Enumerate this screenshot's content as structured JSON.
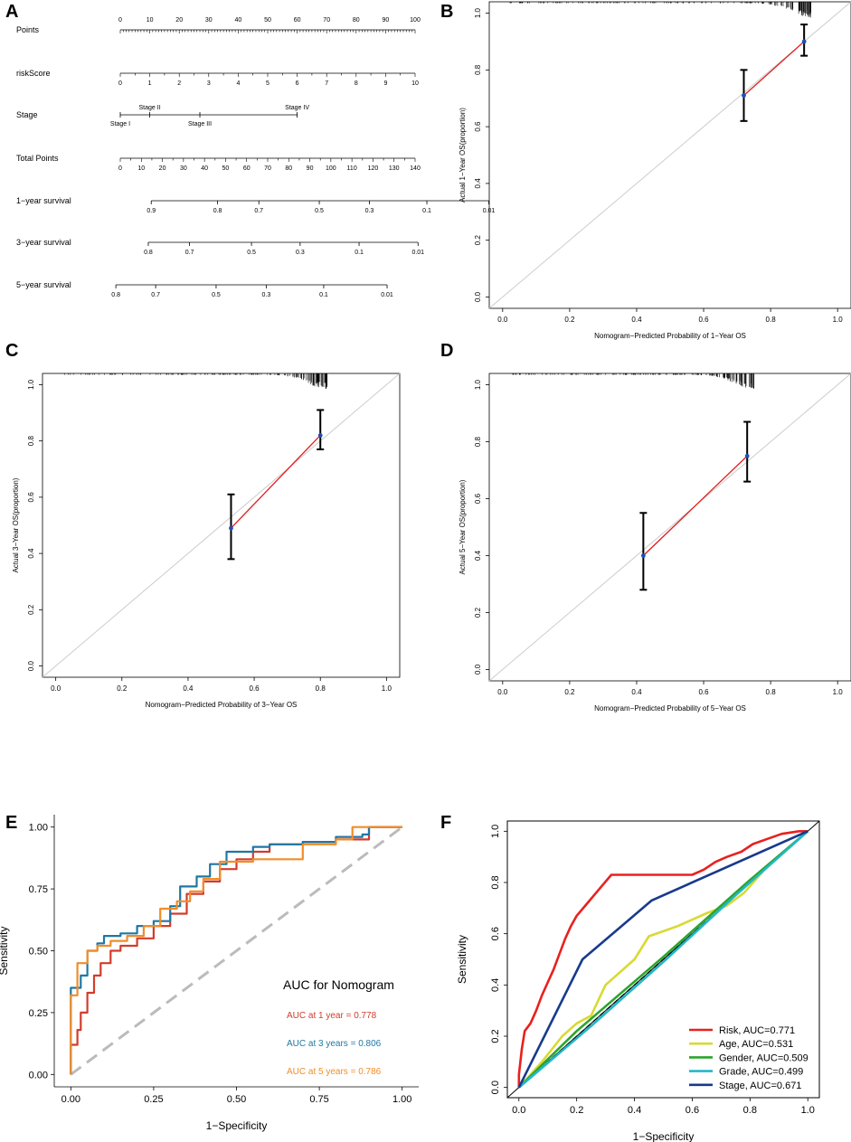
{
  "panel_letters": {
    "a": "A",
    "b": "B",
    "c": "C",
    "d": "D",
    "e": "E",
    "f": "F"
  },
  "chart_data": [
    {
      "id": "A",
      "type": "nomogram",
      "rows": [
        {
          "label": "Points",
          "ticks": [
            "0",
            "10",
            "20",
            "30",
            "40",
            "50",
            "60",
            "70",
            "80",
            "90",
            "100"
          ],
          "values": [
            0,
            10,
            20,
            30,
            40,
            50,
            60,
            70,
            80,
            90,
            100
          ]
        },
        {
          "label": "riskScore",
          "ticks": [
            "0",
            "1",
            "2",
            "3",
            "4",
            "5",
            "6",
            "7",
            "8",
            "9",
            "10"
          ],
          "values": [
            0,
            10,
            20,
            30,
            40,
            50,
            60,
            70,
            80,
            90,
            100
          ]
        },
        {
          "label": "Stage",
          "ticks": [
            "Stage I",
            "Stage II",
            "Stage III",
            "Stage IV"
          ],
          "values": [
            0,
            10,
            27,
            60
          ]
        },
        {
          "label": "Total Points",
          "ticks": [
            "0",
            "10",
            "20",
            "30",
            "40",
            "50",
            "60",
            "70",
            "80",
            "90",
            "100",
            "110",
            "120",
            "130",
            "140"
          ],
          "values": [
            0,
            10,
            20,
            30,
            40,
            50,
            60,
            70,
            80,
            90,
            100,
            110,
            120,
            130,
            140
          ]
        },
        {
          "label": "1−year survival",
          "ticks": [
            "0.9",
            "0.8",
            "0.7",
            "0.5",
            "0.3",
            "0.1",
            "0.01"
          ],
          "values": [
            10.5,
            33,
            47,
            67.5,
            84.5,
            104,
            125
          ]
        },
        {
          "label": "3−year survival",
          "ticks": [
            "0.8",
            "0.7",
            "0.5",
            "0.3",
            "0.1",
            "0.01"
          ],
          "values": [
            9.5,
            23.5,
            44.5,
            61,
            81,
            101
          ]
        },
        {
          "label": "5−year survival",
          "ticks": [
            "0.8",
            "0.7",
            "0.5",
            "0.3",
            "0.1",
            "0.01"
          ],
          "values": [
            -1.5,
            12,
            32.5,
            49.5,
            69,
            90.5
          ]
        }
      ]
    },
    {
      "id": "B",
      "type": "scatter",
      "title": "",
      "xlabel": "Nomogram−Predicted Probability of 1−Year OS",
      "ylabel": "Actual 1−Year OS(proportion)",
      "xlim": [
        -0.04,
        1.04
      ],
      "ylim": [
        -0.04,
        1.04
      ],
      "xticks": [
        "0.0",
        "0.2",
        "0.4",
        "0.6",
        "0.8",
        "1.0"
      ],
      "yticks": [
        "0.0",
        "0.2",
        "0.4",
        "0.6",
        "0.8",
        "1.0"
      ],
      "points": [
        {
          "x": 0.72,
          "y": 0.71,
          "lo": 0.62,
          "hi": 0.8
        },
        {
          "x": 0.9,
          "y": 0.9,
          "lo": 0.85,
          "hi": 0.96
        }
      ]
    },
    {
      "id": "C",
      "type": "scatter",
      "title": "",
      "xlabel": "Nomogram−Predicted Probability of 3−Year OS",
      "ylabel": "Actual 3−Year OS(proportion)",
      "xlim": [
        -0.04,
        1.04
      ],
      "ylim": [
        -0.04,
        1.04
      ],
      "xticks": [
        "0.0",
        "0.2",
        "0.4",
        "0.6",
        "0.8",
        "1.0"
      ],
      "yticks": [
        "0.0",
        "0.2",
        "0.4",
        "0.6",
        "0.8",
        "1.0"
      ],
      "points": [
        {
          "x": 0.53,
          "y": 0.49,
          "lo": 0.38,
          "hi": 0.61
        },
        {
          "x": 0.8,
          "y": 0.82,
          "lo": 0.77,
          "hi": 0.91
        }
      ]
    },
    {
      "id": "D",
      "type": "scatter",
      "title": "",
      "xlabel": "Nomogram−Predicted Probability of 5−Year OS",
      "ylabel": "Actual 5−Year OS(proportion)",
      "xlim": [
        -0.04,
        1.04
      ],
      "ylim": [
        -0.04,
        1.04
      ],
      "xticks": [
        "0.0",
        "0.2",
        "0.4",
        "0.6",
        "0.8",
        "1.0"
      ],
      "yticks": [
        "0.0",
        "0.2",
        "0.4",
        "0.6",
        "0.8",
        "1.0"
      ],
      "points": [
        {
          "x": 0.42,
          "y": 0.4,
          "lo": 0.28,
          "hi": 0.55
        },
        {
          "x": 0.73,
          "y": 0.75,
          "lo": 0.66,
          "hi": 0.87
        }
      ]
    },
    {
      "id": "E",
      "type": "line",
      "title": "",
      "xlabel": "1−Specificity",
      "ylabel": "Sensitivity",
      "xlim": [
        -0.05,
        1.05
      ],
      "ylim": [
        -0.05,
        1.05
      ],
      "xticks": [
        "0.00",
        "0.25",
        "0.50",
        "0.75",
        "1.00"
      ],
      "yticks": [
        "0.00",
        "0.25",
        "0.50",
        "0.75",
        "1.00"
      ],
      "legend_title": "AUC for Nomogram",
      "legend_placement": "bottom-right",
      "series": [
        {
          "name": "AUC at 1 year = 0.778",
          "color": "#d23c2b",
          "points": [
            [
              0,
              0
            ],
            [
              0,
              0.12
            ],
            [
              0.02,
              0.18
            ],
            [
              0.03,
              0.25
            ],
            [
              0.05,
              0.33
            ],
            [
              0.07,
              0.4
            ],
            [
              0.09,
              0.45
            ],
            [
              0.12,
              0.5
            ],
            [
              0.15,
              0.52
            ],
            [
              0.2,
              0.55
            ],
            [
              0.25,
              0.6
            ],
            [
              0.3,
              0.65
            ],
            [
              0.35,
              0.73
            ],
            [
              0.4,
              0.78
            ],
            [
              0.45,
              0.83
            ],
            [
              0.5,
              0.87
            ],
            [
              0.55,
              0.9
            ],
            [
              0.6,
              0.93
            ],
            [
              0.7,
              0.94
            ],
            [
              0.8,
              0.95
            ],
            [
              0.9,
              0.98
            ],
            [
              0.9,
              1.0
            ],
            [
              1,
              1
            ]
          ]
        },
        {
          "name": "AUC at 3 years = 0.806",
          "color": "#1f77a5",
          "points": [
            [
              0,
              0
            ],
            [
              0,
              0.35
            ],
            [
              0.03,
              0.4
            ],
            [
              0.05,
              0.5
            ],
            [
              0.08,
              0.53
            ],
            [
              0.1,
              0.56
            ],
            [
              0.15,
              0.57
            ],
            [
              0.2,
              0.6
            ],
            [
              0.25,
              0.62
            ],
            [
              0.3,
              0.68
            ],
            [
              0.33,
              0.76
            ],
            [
              0.38,
              0.8
            ],
            [
              0.42,
              0.85
            ],
            [
              0.47,
              0.9
            ],
            [
              0.55,
              0.92
            ],
            [
              0.6,
              0.93
            ],
            [
              0.7,
              0.94
            ],
            [
              0.8,
              0.96
            ],
            [
              0.88,
              0.97
            ],
            [
              0.9,
              1.0
            ],
            [
              1,
              1
            ]
          ]
        },
        {
          "name": "AUC at 5 years = 0.786",
          "color": "#f28c28",
          "points": [
            [
              0,
              0
            ],
            [
              0,
              0.32
            ],
            [
              0.02,
              0.45
            ],
            [
              0.05,
              0.5
            ],
            [
              0.08,
              0.52
            ],
            [
              0.12,
              0.54
            ],
            [
              0.17,
              0.56
            ],
            [
              0.22,
              0.6
            ],
            [
              0.27,
              0.67
            ],
            [
              0.32,
              0.7
            ],
            [
              0.36,
              0.74
            ],
            [
              0.4,
              0.79
            ],
            [
              0.45,
              0.86
            ],
            [
              0.5,
              0.86
            ],
            [
              0.55,
              0.87
            ],
            [
              0.65,
              0.87
            ],
            [
              0.7,
              0.93
            ],
            [
              0.8,
              0.95
            ],
            [
              0.85,
              1.0
            ],
            [
              1,
              1
            ]
          ]
        }
      ],
      "reference_line": {
        "style": "dashed",
        "color": "#bbbbbb"
      }
    },
    {
      "id": "F",
      "type": "line",
      "title": "",
      "xlabel": "1−Specificity",
      "ylabel": "Sensitivity",
      "xlim": [
        -0.04,
        1.04
      ],
      "ylim": [
        -0.04,
        1.04
      ],
      "xticks": [
        "0.0",
        "0.2",
        "0.4",
        "0.6",
        "0.8",
        "1.0"
      ],
      "yticks": [
        "0.0",
        "0.2",
        "0.4",
        "0.6",
        "0.8",
        "1.0"
      ],
      "legend_placement": "bottom-right",
      "series": [
        {
          "name": "Risk, AUC=0.771",
          "color": "#e8211f",
          "points": [
            [
              0,
              0
            ],
            [
              0,
              0.05
            ],
            [
              0.01,
              0.15
            ],
            [
              0.02,
              0.22
            ],
            [
              0.04,
              0.25
            ],
            [
              0.06,
              0.3
            ],
            [
              0.08,
              0.36
            ],
            [
              0.1,
              0.41
            ],
            [
              0.12,
              0.46
            ],
            [
              0.14,
              0.52
            ],
            [
              0.16,
              0.58
            ],
            [
              0.18,
              0.63
            ],
            [
              0.2,
              0.67
            ],
            [
              0.23,
              0.71
            ],
            [
              0.26,
              0.75
            ],
            [
              0.29,
              0.79
            ],
            [
              0.32,
              0.83
            ],
            [
              0.6,
              0.83
            ],
            [
              0.64,
              0.85
            ],
            [
              0.68,
              0.88
            ],
            [
              0.72,
              0.9
            ],
            [
              0.77,
              0.92
            ],
            [
              0.81,
              0.95
            ],
            [
              0.86,
              0.97
            ],
            [
              0.91,
              0.99
            ],
            [
              0.97,
              1.0
            ],
            [
              1,
              1
            ]
          ]
        },
        {
          "name": "Age, AUC=0.531",
          "color": "#d9d934",
          "points": [
            [
              0,
              0
            ],
            [
              0.08,
              0.1
            ],
            [
              0.15,
              0.2
            ],
            [
              0.2,
              0.25
            ],
            [
              0.25,
              0.28
            ],
            [
              0.3,
              0.4
            ],
            [
              0.35,
              0.45
            ],
            [
              0.4,
              0.5
            ],
            [
              0.45,
              0.59
            ],
            [
              0.55,
              0.63
            ],
            [
              0.65,
              0.68
            ],
            [
              0.72,
              0.71
            ],
            [
              0.78,
              0.76
            ],
            [
              0.85,
              0.85
            ],
            [
              0.92,
              0.92
            ],
            [
              1,
              1
            ]
          ]
        },
        {
          "name": "Gender, AUC=0.509",
          "color": "#2aa52a",
          "points": [
            [
              0,
              0
            ],
            [
              0.2,
              0.22
            ],
            [
              0.5,
              0.51
            ],
            [
              0.8,
              0.81
            ],
            [
              1,
              1
            ]
          ]
        },
        {
          "name": "Grade, AUC=0.499",
          "color": "#22b8c8",
          "points": [
            [
              0,
              0
            ],
            [
              0.25,
              0.24
            ],
            [
              0.5,
              0.49
            ],
            [
              0.75,
              0.75
            ],
            [
              1,
              1
            ]
          ]
        },
        {
          "name": "Stage, AUC=0.671",
          "color": "#183a8c",
          "points": [
            [
              0,
              0
            ],
            [
              0.22,
              0.5
            ],
            [
              0.46,
              0.73
            ],
            [
              1,
              1
            ]
          ]
        }
      ],
      "reference_line": {
        "style": "dashed",
        "color": "#000000"
      }
    }
  ]
}
